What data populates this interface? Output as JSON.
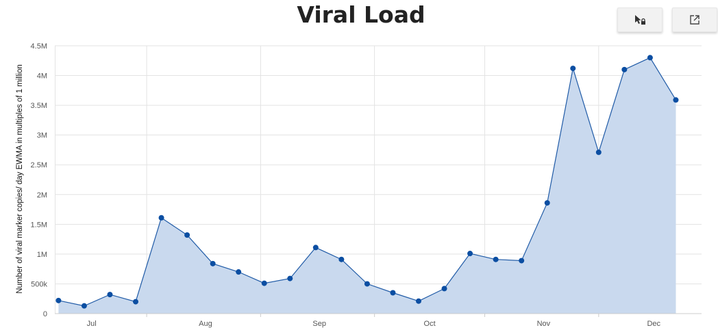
{
  "header": {
    "title": "Viral Load",
    "select_tool_icon": "cursor-lock-icon",
    "expand_icon": "open-external-icon"
  },
  "colors": {
    "line": "#1f5aa6",
    "fill": "#c9d9ee",
    "marker": "#0b4ea2",
    "grid": "#e3e3e3",
    "axis": "#cccccc"
  },
  "chart_data": {
    "type": "area",
    "title": "Viral Load",
    "xlabel": "",
    "ylabel": "Number of viral marker copies/ day EWMA in multiples of 1 million",
    "ylim": [
      0,
      4500000
    ],
    "yticks": [
      0,
      500000,
      1000000,
      1500000,
      2000000,
      2500000,
      3000000,
      3500000,
      4000000,
      4500000
    ],
    "ytick_labels": [
      "0",
      "500k",
      "1M",
      "1.5M",
      "2M",
      "2.5M",
      "3M",
      "3.5M",
      "4M",
      "4.5M"
    ],
    "xlim": [
      "2021-06-21",
      "2021-12-14"
    ],
    "xticks": [
      "2021-07-01",
      "2021-08-01",
      "2021-09-01",
      "2021-10-01",
      "2021-11-01",
      "2021-12-01"
    ],
    "xtick_labels": [
      "Jul",
      "Aug",
      "Sep",
      "Oct",
      "Nov",
      "Dec"
    ],
    "grid": true,
    "series": [
      {
        "x": [
          "2021-06-22",
          "2021-06-29",
          "2021-07-06",
          "2021-07-13",
          "2021-07-20",
          "2021-07-27",
          "2021-08-03",
          "2021-08-10",
          "2021-08-17",
          "2021-08-24",
          "2021-08-31",
          "2021-09-07",
          "2021-09-14",
          "2021-09-21",
          "2021-09-28",
          "2021-10-05",
          "2021-10-12",
          "2021-10-19",
          "2021-10-26",
          "2021-11-02",
          "2021-11-09",
          "2021-11-16",
          "2021-11-23",
          "2021-11-30",
          "2021-12-07"
        ],
        "values": [
          220000,
          130000,
          320000,
          200000,
          1610000,
          1320000,
          840000,
          700000,
          510000,
          590000,
          1110000,
          910000,
          500000,
          350000,
          210000,
          420000,
          1010000,
          910000,
          890000,
          1860000,
          4120000,
          2710000,
          4100000,
          4300000,
          3590000
        ]
      }
    ]
  }
}
